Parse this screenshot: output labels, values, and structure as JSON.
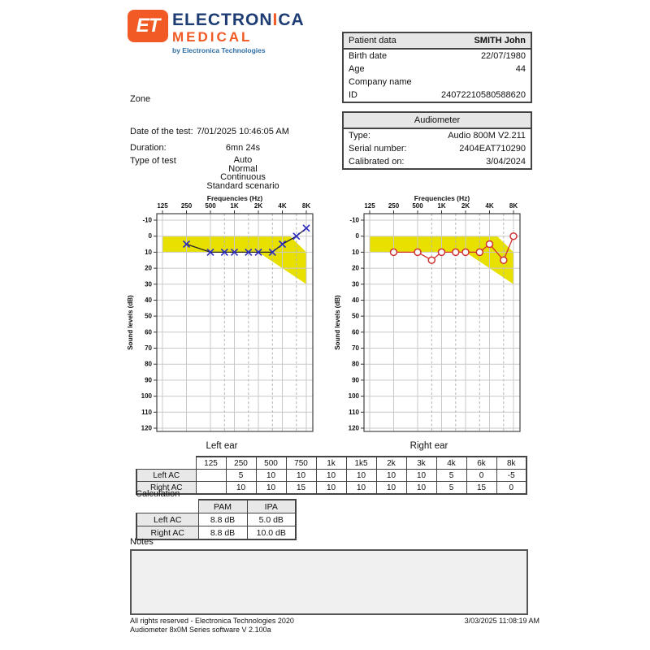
{
  "logo": {
    "mark_text": "ET",
    "name_part1": "ELECTRON",
    "name_accent": "I",
    "name_part2": "CA",
    "name_line2": "MEDICAL",
    "tagline": "by Electronica Technologies",
    "colors": {
      "orange": "#f15a24",
      "navy": "#1e3c74",
      "tagline_blue": "#2e6da4"
    }
  },
  "patient": {
    "header_label": "Patient data",
    "name": "SMITH John",
    "rows": [
      {
        "label": "Birth date",
        "value": "22/07/1980"
      },
      {
        "label": "Age",
        "value": "44"
      },
      {
        "label": "Company name",
        "value": ""
      },
      {
        "label": "ID",
        "value": "24072210580588620"
      }
    ]
  },
  "audiometer": {
    "header": "Audiometer",
    "rows": [
      {
        "label": "Type:",
        "value": "Audio 800M V2.211"
      },
      {
        "label": "Serial number:",
        "value": "2404EAT710290"
      },
      {
        "label": "Calibrated on:",
        "value": "3/04/2024"
      }
    ]
  },
  "test_info": {
    "zone_label": "Zone",
    "date_label": "Date of the test:",
    "date_value": "7/01/2025 10:46:05 AM",
    "duration_label": "Duration:",
    "duration_value": "6mn 24s",
    "type_label": "Type of test",
    "type_value": "Auto\nNormal\nContinuous\nStandard scenario"
  },
  "freq_table": {
    "col_headers": [
      "125",
      "250",
      "500",
      "750",
      "1k",
      "1k5",
      "2k",
      "3k",
      "4k",
      "6k",
      "8k"
    ],
    "rows": [
      {
        "label": "Left AC",
        "values": [
          "",
          "5",
          "10",
          "10",
          "10",
          "10",
          "10",
          "10",
          "5",
          "0",
          "-5"
        ]
      },
      {
        "label": "Right AC",
        "values": [
          "",
          "10",
          "10",
          "15",
          "10",
          "10",
          "10",
          "10",
          "5",
          "15",
          "0"
        ]
      }
    ]
  },
  "calculation": {
    "title": "Calculation",
    "col_headers": [
      "PAM",
      "IPA"
    ],
    "rows": [
      {
        "label": "Left AC",
        "values": [
          "8.8 dB",
          "5.0 dB"
        ]
      },
      {
        "label": "Right AC",
        "values": [
          "8.8 dB",
          "10.0 dB"
        ]
      }
    ]
  },
  "notes": {
    "label": "Notes",
    "content": ""
  },
  "footer": {
    "line1": "All rights reserved - Electronica Technologies 2020",
    "line2": "Audiometer 8x0M Series software V 2.100a",
    "timestamp": "3/03/2025 11:08:19 AM"
  },
  "chart_data": [
    {
      "type": "line",
      "title": "Frequencies (Hz)",
      "ylabel": "Sound levels (dB)",
      "caption": "Left ear",
      "ylim": [
        -10,
        120
      ],
      "y_tick_step": 10,
      "x_scale": "log2 octaves from 125 Hz",
      "frequencies": [
        125,
        250,
        500,
        750,
        1000,
        1500,
        2000,
        3000,
        4000,
        6000,
        8000
      ],
      "major_tick_frequencies": [
        125,
        250,
        500,
        1000,
        2000,
        4000,
        8000
      ],
      "major_tick_labels": [
        "125",
        "250",
        "500",
        "1K",
        "2K",
        "4K",
        "8K"
      ],
      "grid": true,
      "legend": false,
      "series": [
        {
          "name": "Left AC",
          "marker": "x",
          "marker_color": "#2b2bbf",
          "line_color": "#222222",
          "values": [
            null,
            5,
            10,
            10,
            10,
            10,
            10,
            10,
            5,
            0,
            -5
          ]
        }
      ],
      "normal_zone": {
        "fill": "#e8e100",
        "points_freq_db": [
          [
            125,
            0
          ],
          [
            5000,
            0
          ],
          [
            8000,
            10
          ],
          [
            8000,
            30
          ],
          [
            2000,
            10
          ],
          [
            125,
            10
          ]
        ]
      }
    },
    {
      "type": "line",
      "title": "Frequencies (Hz)",
      "ylabel": "Sound levels (dB)",
      "caption": "Right ear",
      "ylim": [
        -10,
        120
      ],
      "y_tick_step": 10,
      "x_scale": "log2 octaves from 125 Hz",
      "frequencies": [
        125,
        250,
        500,
        750,
        1000,
        1500,
        2000,
        3000,
        4000,
        6000,
        8000
      ],
      "major_tick_frequencies": [
        125,
        250,
        500,
        1000,
        2000,
        4000,
        8000
      ],
      "major_tick_labels": [
        "125",
        "250",
        "500",
        "1K",
        "2K",
        "4K",
        "8K"
      ],
      "grid": true,
      "legend": false,
      "series": [
        {
          "name": "Right AC",
          "marker": "o",
          "marker_color": "#d03030",
          "line_color": "#d03030",
          "values": [
            null,
            10,
            10,
            15,
            10,
            10,
            10,
            10,
            5,
            15,
            0
          ]
        }
      ],
      "normal_zone": {
        "fill": "#e8e100",
        "points_freq_db": [
          [
            125,
            0
          ],
          [
            5000,
            0
          ],
          [
            8000,
            10
          ],
          [
            8000,
            30
          ],
          [
            2000,
            10
          ],
          [
            125,
            10
          ]
        ]
      }
    }
  ]
}
